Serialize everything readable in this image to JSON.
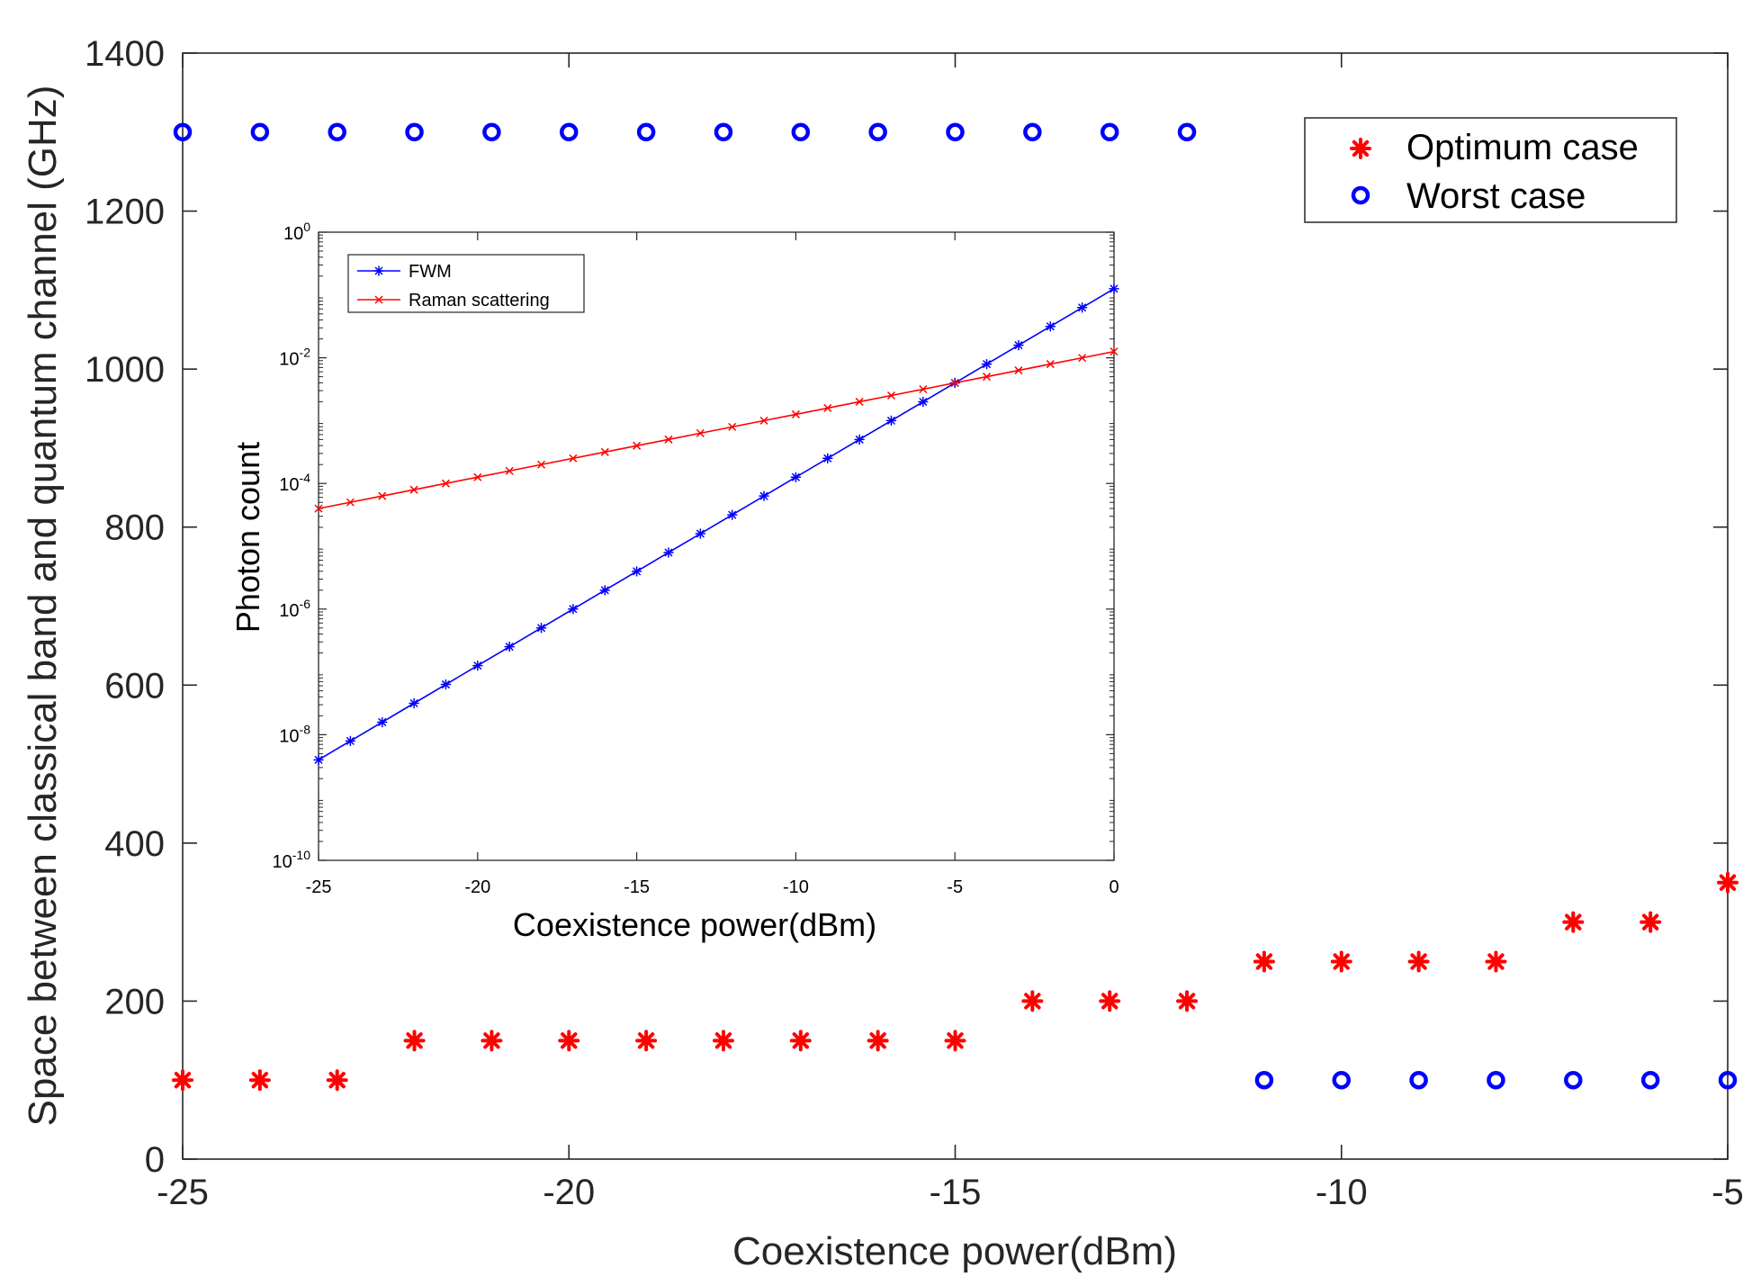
{
  "chart_data": [
    {
      "id": "main",
      "type": "scatter",
      "title": "",
      "xlabel": "Coexistence power(dBm)",
      "ylabel": "Space between classical band and quantum channel (GHz)",
      "xlim": [
        -25,
        -5
      ],
      "ylim": [
        0,
        1400
      ],
      "xticks": [
        -25,
        -20,
        -15,
        -10,
        -5
      ],
      "yticks": [
        0,
        200,
        400,
        600,
        800,
        1000,
        1200,
        1400
      ],
      "legend_position": "top-right",
      "series": [
        {
          "name": "Optimum case",
          "marker": "asterisk",
          "color": "#ff0000",
          "x": [
            -25,
            -24,
            -23,
            -22,
            -21,
            -20,
            -19,
            -18,
            -17,
            -16,
            -15,
            -14,
            -13,
            -12,
            -11,
            -10,
            -9,
            -8,
            -7,
            -6,
            -5
          ],
          "y": [
            100,
            100,
            100,
            150,
            150,
            150,
            150,
            150,
            150,
            150,
            150,
            200,
            200,
            200,
            250,
            250,
            250,
            250,
            300,
            300,
            350
          ]
        },
        {
          "name": "Worst case",
          "marker": "circle",
          "color": "#0000ff",
          "x": [
            -25,
            -24,
            -23,
            -22,
            -21,
            -20,
            -19,
            -18,
            -17,
            -16,
            -15,
            -14,
            -13,
            -12,
            -11,
            -10,
            -9,
            -8,
            -7,
            -6,
            -5
          ],
          "y": [
            1300,
            1300,
            1300,
            1300,
            1300,
            1300,
            1300,
            1300,
            1300,
            1300,
            1300,
            1300,
            1300,
            1300,
            100,
            100,
            100,
            100,
            100,
            100,
            100
          ]
        }
      ]
    },
    {
      "id": "inset",
      "type": "line",
      "title": "",
      "xlabel": "Coexistence power(dBm)",
      "ylabel": "Photon count",
      "xlim": [
        -25,
        0
      ],
      "ylim_log10": [
        -10,
        0
      ],
      "yscale": "log",
      "xticks": [
        -25,
        -20,
        -15,
        -10,
        -5,
        0
      ],
      "yticks_exp": [
        -10,
        -8,
        -6,
        -4,
        -2,
        0
      ],
      "ytick_base": "10",
      "legend_position": "top-left",
      "series": [
        {
          "name": "FWM",
          "marker": "asterisk",
          "color": "#0000ff",
          "x": [
            -25,
            -24,
            -23,
            -22,
            -21,
            -20,
            -19,
            -18,
            -17,
            -16,
            -15,
            -14,
            -13,
            -12,
            -11,
            -10,
            -9,
            -8,
            -7,
            -6,
            -5,
            -4,
            -3,
            -2,
            -1,
            0
          ],
          "y_log10": [
            -8.4,
            -8.1,
            -7.8,
            -7.5,
            -7.2,
            -6.9,
            -6.6,
            -6.3,
            -6.0,
            -5.7,
            -5.4,
            -5.1,
            -4.8,
            -4.5,
            -4.2,
            -3.9,
            -3.6,
            -3.3,
            -3.0,
            -2.7,
            -2.4,
            -2.1,
            -1.8,
            -1.5,
            -1.2,
            -0.9
          ]
        },
        {
          "name": "Raman scattering",
          "marker": "x",
          "color": "#ff0000",
          "x": [
            -25,
            -24,
            -23,
            -22,
            -21,
            -20,
            -19,
            -18,
            -17,
            -16,
            -15,
            -14,
            -13,
            -12,
            -11,
            -10,
            -9,
            -8,
            -7,
            -6,
            -5,
            -4,
            -3,
            -2,
            -1,
            0
          ],
          "y_log10": [
            -4.4,
            -4.3,
            -4.2,
            -4.1,
            -4.0,
            -3.9,
            -3.8,
            -3.7,
            -3.6,
            -3.5,
            -3.4,
            -3.3,
            -3.2,
            -3.1,
            -3.0,
            -2.9,
            -2.8,
            -2.7,
            -2.6,
            -2.5,
            -2.4,
            -2.3,
            -2.2,
            -2.1,
            -2.0,
            -1.9
          ]
        }
      ]
    }
  ]
}
